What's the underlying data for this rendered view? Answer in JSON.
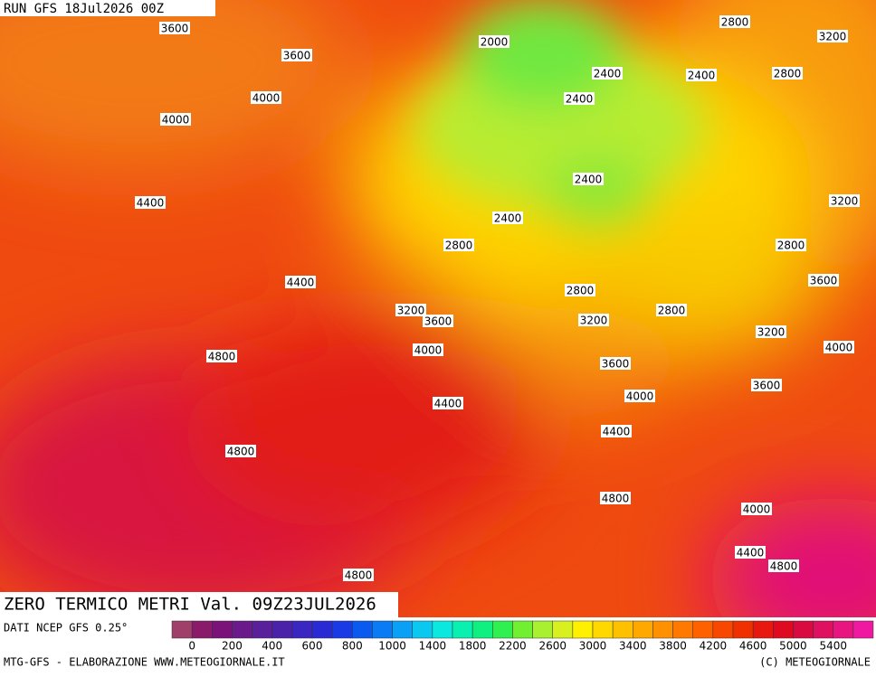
{
  "header": {
    "run": "RUN GFS 18Jul2026 00Z"
  },
  "title": "ZERO TERMICO METRI Val. 09Z23JUL2026",
  "source": "DATI NCEP GFS 0.25°",
  "credit_left": "MTG-GFS - ELABORAZIONE WWW.METEOGIORNALE.IT",
  "credit_right": "(C) METEOGIORNALE",
  "contour_labels": [
    3600,
    3600,
    2000,
    2800,
    3200,
    4000,
    4000,
    2400,
    2400,
    2800,
    2400,
    2400,
    4400,
    3200,
    2400,
    2800,
    2800,
    4400,
    3600,
    2800,
    3200,
    2800,
    3600,
    3200,
    3200,
    4000,
    4000,
    4800,
    3600,
    4000,
    3600,
    4400,
    4400,
    4800,
    4800,
    4000,
    4400,
    4800,
    4800
  ],
  "colorbar": {
    "colors": [
      "#a0406a",
      "#8a1a6a",
      "#7a127a",
      "#6a1a8a",
      "#5a1f9a",
      "#4a22aa",
      "#3a26c0",
      "#2a2ad5",
      "#1a3ae6",
      "#0a5af0",
      "#0a7af5",
      "#0aa0f5",
      "#0ac8f0",
      "#0ae8e0",
      "#0af0b0",
      "#10f080",
      "#30f050",
      "#70f030",
      "#a8f030",
      "#d8f020",
      "#fff000",
      "#ffd800",
      "#ffc000",
      "#ffa800",
      "#ff9000",
      "#ff7800",
      "#ff6000",
      "#f84800",
      "#f03000",
      "#e81810",
      "#e00a20",
      "#d80a40",
      "#e01060",
      "#e81480",
      "#f018a0"
    ],
    "ticks": [
      0,
      200,
      400,
      600,
      800,
      1000,
      1400,
      1800,
      2200,
      2600,
      3000,
      3400,
      3800,
      4200,
      4600,
      5000,
      5400
    ]
  }
}
